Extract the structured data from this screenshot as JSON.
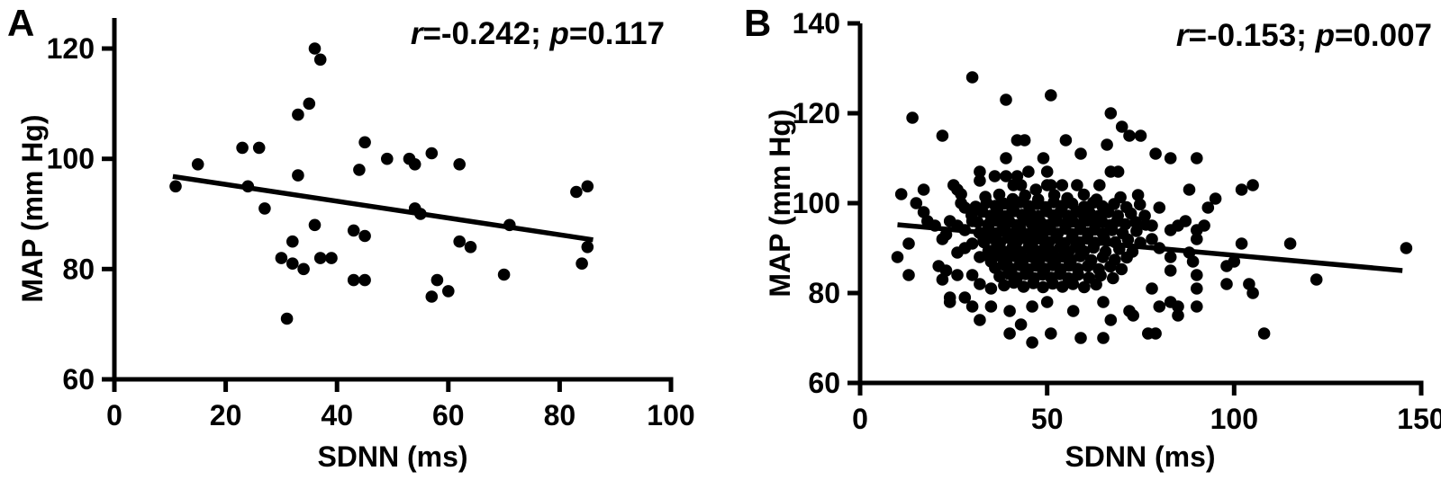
{
  "figure": {
    "background": "#ffffff",
    "ink": "#000000"
  },
  "chart_data": [
    {
      "type": "scatter",
      "panel_label": "A",
      "annotation": {
        "r_sym": "r",
        "r_text": "=-0.242; ",
        "p_sym": "p",
        "p_text": "=0.117"
      },
      "xlabel": "SDNN (ms)",
      "ylabel": "MAP (mm Hg)",
      "xlim": [
        0,
        100
      ],
      "ylim": [
        60,
        120
      ],
      "x_ticks": [
        0,
        20,
        40,
        60,
        80,
        100
      ],
      "y_ticks": [
        60,
        80,
        100,
        120
      ],
      "grid": false,
      "legend": null,
      "marker_color": "#000000",
      "trendline": {
        "x1": 10.5,
        "y1": 96.8,
        "x2": 86,
        "y2": 85.3
      },
      "points": [
        [
          11,
          95
        ],
        [
          15,
          99
        ],
        [
          23,
          102
        ],
        [
          24,
          95
        ],
        [
          26,
          102
        ],
        [
          27,
          91
        ],
        [
          30,
          82
        ],
        [
          31,
          71
        ],
        [
          32,
          85
        ],
        [
          32,
          81
        ],
        [
          33,
          108
        ],
        [
          33,
          97
        ],
        [
          34,
          80
        ],
        [
          35,
          110
        ],
        [
          36,
          120
        ],
        [
          37,
          118
        ],
        [
          36,
          88
        ],
        [
          37,
          82
        ],
        [
          39,
          82
        ],
        [
          43,
          78
        ],
        [
          45,
          78
        ],
        [
          43,
          87
        ],
        [
          45,
          86
        ],
        [
          44,
          98
        ],
        [
          45,
          103
        ],
        [
          49,
          100
        ],
        [
          53,
          100
        ],
        [
          54,
          99
        ],
        [
          54,
          91
        ],
        [
          55,
          90
        ],
        [
          57,
          101
        ],
        [
          57,
          75
        ],
        [
          58,
          78
        ],
        [
          60,
          76
        ],
        [
          62,
          99
        ],
        [
          62,
          85
        ],
        [
          64,
          84
        ],
        [
          70,
          79
        ],
        [
          71,
          88
        ],
        [
          83,
          94
        ],
        [
          84,
          81
        ],
        [
          85,
          95
        ],
        [
          85,
          84
        ]
      ]
    },
    {
      "type": "scatter",
      "panel_label": "B",
      "annotation": {
        "r_sym": "r",
        "r_text": "=-0.153; ",
        "p_sym": "p",
        "p_text": "=0.007"
      },
      "xlabel": "SDNN (ms)",
      "ylabel": "MAP (mm Hg)",
      "xlim": [
        0,
        150
      ],
      "ylim": [
        60,
        140
      ],
      "x_ticks": [
        0,
        50,
        100,
        150
      ],
      "y_ticks": [
        60,
        80,
        100,
        120,
        140
      ],
      "grid": false,
      "legend": null,
      "marker_color": "#000000",
      "trendline": {
        "x1": 10,
        "y1": 95.2,
        "x2": 145,
        "y2": 85.0
      },
      "points": [
        [
          30,
          128
        ],
        [
          39,
          123
        ],
        [
          51,
          124
        ],
        [
          14,
          119
        ],
        [
          67,
          120
        ],
        [
          22,
          115
        ],
        [
          42,
          114
        ],
        [
          44,
          114
        ],
        [
          55,
          114
        ],
        [
          59,
          111
        ],
        [
          66,
          113
        ],
        [
          70,
          117
        ],
        [
          72,
          115
        ],
        [
          75,
          115
        ],
        [
          39,
          110
        ],
        [
          49,
          110
        ],
        [
          50,
          107
        ],
        [
          32,
          107
        ],
        [
          32,
          105
        ],
        [
          36,
          106
        ],
        [
          39,
          106
        ],
        [
          42,
          106
        ],
        [
          45,
          107
        ],
        [
          79,
          111
        ],
        [
          83,
          110
        ],
        [
          90,
          110
        ],
        [
          41,
          104
        ],
        [
          43,
          104
        ],
        [
          47,
          103
        ],
        [
          50,
          104
        ],
        [
          51,
          104
        ],
        [
          54,
          104
        ],
        [
          58,
          104
        ],
        [
          64,
          104
        ],
        [
          67,
          107
        ],
        [
          69,
          107
        ],
        [
          11,
          102
        ],
        [
          17,
          103
        ],
        [
          15,
          100
        ],
        [
          17,
          98
        ],
        [
          26,
          103
        ],
        [
          27,
          100
        ],
        [
          28,
          99
        ],
        [
          27,
          102
        ],
        [
          88,
          103
        ],
        [
          95,
          101
        ],
        [
          93,
          99
        ],
        [
          102,
          103
        ],
        [
          105,
          104
        ],
        [
          80,
          99
        ],
        [
          25,
          104
        ],
        [
          18,
          96
        ],
        [
          20,
          95
        ],
        [
          13,
          91
        ],
        [
          10,
          88
        ],
        [
          13,
          84
        ],
        [
          22,
          92
        ],
        [
          21,
          86
        ],
        [
          22,
          83
        ],
        [
          24,
          79
        ],
        [
          24,
          96
        ],
        [
          26,
          95
        ],
        [
          28,
          94
        ],
        [
          30,
          96
        ],
        [
          23,
          93
        ],
        [
          26,
          89
        ],
        [
          28,
          90
        ],
        [
          30,
          91
        ],
        [
          33,
          92
        ],
        [
          32,
          88
        ],
        [
          35,
          87
        ],
        [
          23,
          85
        ],
        [
          26,
          84
        ],
        [
          30,
          84
        ],
        [
          32,
          82
        ],
        [
          35,
          81
        ],
        [
          28,
          79
        ],
        [
          24,
          78
        ],
        [
          30,
          77
        ],
        [
          32,
          74
        ],
        [
          40,
          76
        ],
        [
          40,
          71
        ],
        [
          43,
          73
        ],
        [
          46,
          69
        ],
        [
          46,
          77
        ],
        [
          50,
          78
        ],
        [
          51,
          71
        ],
        [
          57,
          76
        ],
        [
          59,
          70
        ],
        [
          65,
          78
        ],
        [
          65,
          70
        ],
        [
          67,
          74
        ],
        [
          72,
          76
        ],
        [
          73,
          75
        ],
        [
          77,
          71
        ],
        [
          35,
          77
        ],
        [
          78,
          95
        ],
        [
          83,
          94
        ],
        [
          85,
          95
        ],
        [
          87,
          96
        ],
        [
          90,
          94
        ],
        [
          92,
          95
        ],
        [
          90,
          92
        ],
        [
          78,
          92
        ],
        [
          80,
          90
        ],
        [
          83,
          88
        ],
        [
          83,
          85
        ],
        [
          88,
          89
        ],
        [
          89,
          87
        ],
        [
          90,
          84
        ],
        [
          90,
          81
        ],
        [
          78,
          81
        ],
        [
          83,
          78
        ],
        [
          80,
          77
        ],
        [
          85,
          77
        ],
        [
          90,
          77
        ],
        [
          85,
          75
        ],
        [
          79,
          71
        ],
        [
          102,
          91
        ],
        [
          115,
          91
        ],
        [
          100,
          87
        ],
        [
          98,
          86
        ],
        [
          122,
          83
        ],
        [
          98,
          82
        ],
        [
          104,
          82
        ],
        [
          105,
          80
        ],
        [
          108,
          71
        ],
        [
          146,
          90
        ],
        [
          33.5,
          101.4
        ],
        [
          37.2,
          101.9
        ],
        [
          40.8,
          100.9
        ],
        [
          44.1,
          101.7
        ],
        [
          47.6,
          100.8
        ],
        [
          51.9,
          101.8
        ],
        [
          55.4,
          101.1
        ],
        [
          59.8,
          101.9
        ],
        [
          63.2,
          100.8
        ],
        [
          69.6,
          101.3
        ],
        [
          74.3,
          101.8
        ],
        [
          30.9,
          99.2
        ],
        [
          33.8,
          100.1
        ],
        [
          36.2,
          99.4
        ],
        [
          38.4,
          99.9
        ],
        [
          40.6,
          99.1
        ],
        [
          42.9,
          100.2
        ],
        [
          45.2,
          99.3
        ],
        [
          47.4,
          99.8
        ],
        [
          49.6,
          99.1
        ],
        [
          51.8,
          100.2
        ],
        [
          54.1,
          99.4
        ],
        [
          56.7,
          99.9
        ],
        [
          59.9,
          99.2
        ],
        [
          62.3,
          100.1
        ],
        [
          64.8,
          99.3
        ],
        [
          67.9,
          99.8
        ],
        [
          71.2,
          99.1
        ],
        [
          74.8,
          99.7
        ],
        [
          29.8,
          97.3
        ],
        [
          32.7,
          98.1
        ],
        [
          34.9,
          97.2
        ],
        [
          36.8,
          97.9
        ],
        [
          38.9,
          97.1
        ],
        [
          41.1,
          98.2
        ],
        [
          43.3,
          97.4
        ],
        [
          45.4,
          97.8
        ],
        [
          47.7,
          97.1
        ],
        [
          49.8,
          98.2
        ],
        [
          51.6,
          97.3
        ],
        [
          53.4,
          97.9
        ],
        [
          55.6,
          97.2
        ],
        [
          57.8,
          98.1
        ],
        [
          59.7,
          97.4
        ],
        [
          61.4,
          97.8
        ],
        [
          63.6,
          97.1
        ],
        [
          66.3,
          98.0
        ],
        [
          68.9,
          97.2
        ],
        [
          72.4,
          97.7
        ],
        [
          76.1,
          97.2
        ],
        [
          31.4,
          95.8
        ],
        [
          34.2,
          95.2
        ],
        [
          36.4,
          96.1
        ],
        [
          38.1,
          95.3
        ],
        [
          39.9,
          95.9
        ],
        [
          41.8,
          95.1
        ],
        [
          43.7,
          96.2
        ],
        [
          45.9,
          95.4
        ],
        [
          48.2,
          95.8
        ],
        [
          50.3,
          95.1
        ],
        [
          52.6,
          96.0
        ],
        [
          54.8,
          95.3
        ],
        [
          56.9,
          95.9
        ],
        [
          58.8,
          95.2
        ],
        [
          60.7,
          96.1
        ],
        [
          62.9,
          95.4
        ],
        [
          64.7,
          95.8
        ],
        [
          66.8,
          95.1
        ],
        [
          68.7,
          96.0
        ],
        [
          70.9,
          95.3
        ],
        [
          73.6,
          95.8
        ],
        [
          76.4,
          95.2
        ],
        [
          31.9,
          93.4
        ],
        [
          34.4,
          94.2
        ],
        [
          36.6,
          93.3
        ],
        [
          38.7,
          94.1
        ],
        [
          40.9,
          93.2
        ],
        [
          42.8,
          94.3
        ],
        [
          44.9,
          93.1
        ],
        [
          46.8,
          94.2
        ],
        [
          48.9,
          93.4
        ],
        [
          50.9,
          94.1
        ],
        [
          52.8,
          93.2
        ],
        [
          54.9,
          94.3
        ],
        [
          56.8,
          93.1
        ],
        [
          58.9,
          94.2
        ],
        [
          60.9,
          93.3
        ],
        [
          62.7,
          94.1
        ],
        [
          64.9,
          93.2
        ],
        [
          67.4,
          94.0
        ],
        [
          70.2,
          93.3
        ],
        [
          73.9,
          93.8
        ],
        [
          33.1,
          91.3
        ],
        [
          35.3,
          92.2
        ],
        [
          37.4,
          91.2
        ],
        [
          39.6,
          92.3
        ],
        [
          41.7,
          91.1
        ],
        [
          43.9,
          92.2
        ],
        [
          46.1,
          91.3
        ],
        [
          48.3,
          92.1
        ],
        [
          50.4,
          91.2
        ],
        [
          52.5,
          92.3
        ],
        [
          54.6,
          91.1
        ],
        [
          56.6,
          92.2
        ],
        [
          58.7,
          91.3
        ],
        [
          60.8,
          92.1
        ],
        [
          62.8,
          91.2
        ],
        [
          65.3,
          92.0
        ],
        [
          68.2,
          91.3
        ],
        [
          71.6,
          91.9
        ],
        [
          74.9,
          91.2
        ],
        [
          34.3,
          89.4
        ],
        [
          36.5,
          90.2
        ],
        [
          38.6,
          89.2
        ],
        [
          40.8,
          90.3
        ],
        [
          42.9,
          89.1
        ],
        [
          45.1,
          90.2
        ],
        [
          47.3,
          89.3
        ],
        [
          49.4,
          90.1
        ],
        [
          51.5,
          89.2
        ],
        [
          53.6,
          90.3
        ],
        [
          55.7,
          89.1
        ],
        [
          57.7,
          90.2
        ],
        [
          59.8,
          89.3
        ],
        [
          62.4,
          90.1
        ],
        [
          65.6,
          89.2
        ],
        [
          69.3,
          89.8
        ],
        [
          72.8,
          89.2
        ],
        [
          34.9,
          87.6
        ],
        [
          37.1,
          88.3
        ],
        [
          39.2,
          87.4
        ],
        [
          41.4,
          88.2
        ],
        [
          43.5,
          87.3
        ],
        [
          45.7,
          88.1
        ],
        [
          47.9,
          87.4
        ],
        [
          50.1,
          88.2
        ],
        [
          52.2,
          87.3
        ],
        [
          54.3,
          88.1
        ],
        [
          56.4,
          87.4
        ],
        [
          58.9,
          88.2
        ],
        [
          61.8,
          87.3
        ],
        [
          64.9,
          88.0
        ],
        [
          68.1,
          87.4
        ],
        [
          71.3,
          87.9
        ],
        [
          36.1,
          85.6
        ],
        [
          38.3,
          86.3
        ],
        [
          40.5,
          85.4
        ],
        [
          42.7,
          86.2
        ],
        [
          44.9,
          85.3
        ],
        [
          47.1,
          86.1
        ],
        [
          49.3,
          85.4
        ],
        [
          51.5,
          86.2
        ],
        [
          53.7,
          85.3
        ],
        [
          55.9,
          86.1
        ],
        [
          58.2,
          85.4
        ],
        [
          60.9,
          86.0
        ],
        [
          63.8,
          85.3
        ],
        [
          66.9,
          85.9
        ],
        [
          69.9,
          85.3
        ],
        [
          37.3,
          83.7
        ],
        [
          39.6,
          84.3
        ],
        [
          41.9,
          83.4
        ],
        [
          44.2,
          84.2
        ],
        [
          46.5,
          83.3
        ],
        [
          48.8,
          84.1
        ],
        [
          51.1,
          83.4
        ],
        [
          53.4,
          84.2
        ],
        [
          55.7,
          83.3
        ],
        [
          58.3,
          84.1
        ],
        [
          61.2,
          83.4
        ],
        [
          64.3,
          83.9
        ],
        [
          67.6,
          83.3
        ],
        [
          38.5,
          81.7
        ],
        [
          41.1,
          82.3
        ],
        [
          43.7,
          81.4
        ],
        [
          46.3,
          82.2
        ],
        [
          48.9,
          81.3
        ],
        [
          51.5,
          82.1
        ],
        [
          54.1,
          81.4
        ],
        [
          56.9,
          82.0
        ],
        [
          59.9,
          81.3
        ],
        [
          63.1,
          81.9
        ]
      ]
    }
  ]
}
